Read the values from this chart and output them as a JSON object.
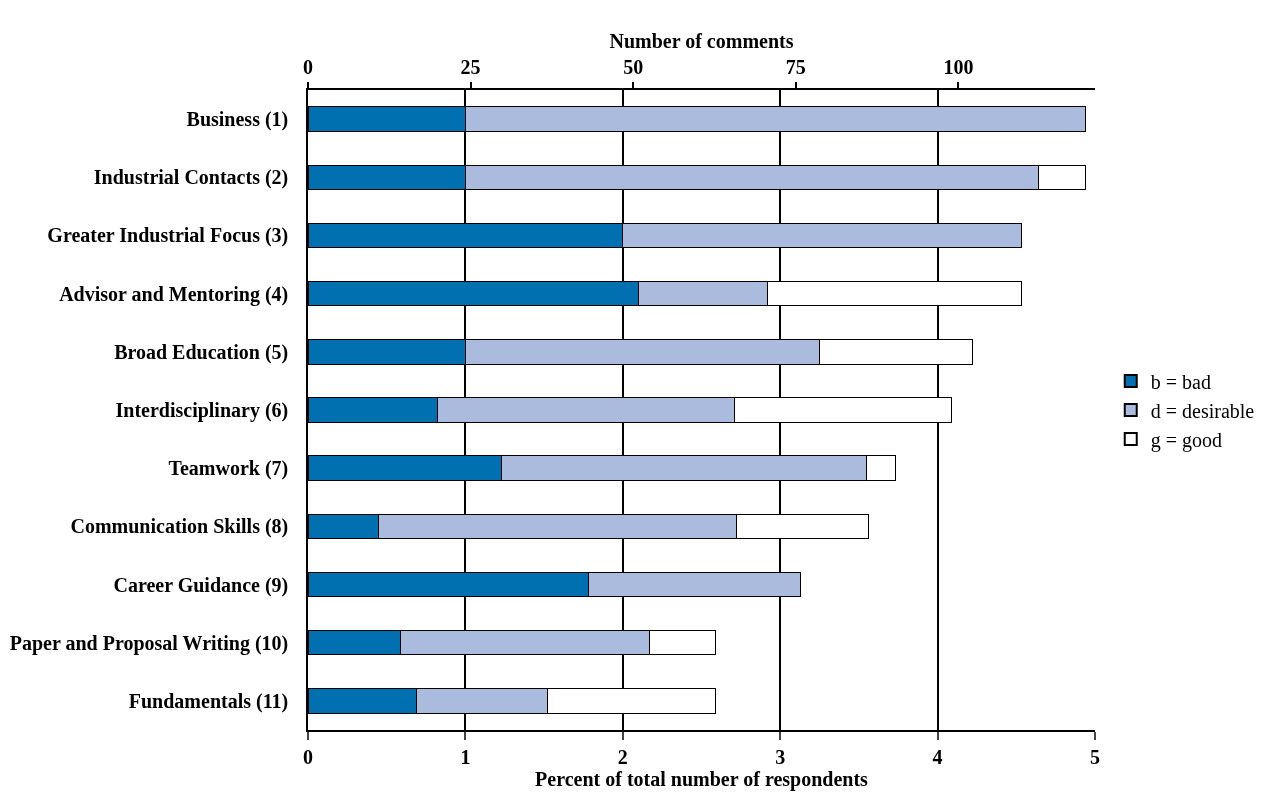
{
  "chart_data": {
    "type": "bar",
    "orientation": "horizontal",
    "stacked": true,
    "xlabel": "Percent of total number of respondents",
    "x2label": "Number of comments",
    "categories": [
      "Business (1)",
      "Industrial Contacts (2)",
      "Greater Industrial Focus (3)",
      "Advisor and Mentoring (4)",
      "Broad Education (5)",
      "Interdisciplinary (6)",
      "Teamwork (7)",
      "Communication Skills (8)",
      "Career Guidance (9)",
      "Paper and Proposal Writing (10)",
      "Fundamentals (11)"
    ],
    "series": [
      {
        "name": "b = bad",
        "color": "#0070b0",
        "values": [
          1.0,
          1.0,
          2.0,
          2.1,
          1.0,
          0.82,
          1.23,
          0.45,
          1.78,
          0.59,
          0.69
        ]
      },
      {
        "name": "d = desirable",
        "color": "#aabbdd",
        "values": [
          3.94,
          3.64,
          2.53,
          0.82,
          2.25,
          1.89,
          2.32,
          2.27,
          1.35,
          1.58,
          0.83
        ]
      },
      {
        "name": "g = good",
        "color": "#ffffff",
        "values": [
          null,
          0.3,
          null,
          1.61,
          0.97,
          1.38,
          0.18,
          0.84,
          null,
          0.42,
          1.07
        ]
      }
    ],
    "xlim": [
      0,
      5
    ],
    "xticks": [
      0,
      1,
      2,
      3,
      4,
      5
    ],
    "x2lim": [
      0,
      121
    ],
    "x2ticks": [
      0,
      25,
      50,
      75,
      100
    ],
    "grid": "x",
    "legend": "right"
  }
}
